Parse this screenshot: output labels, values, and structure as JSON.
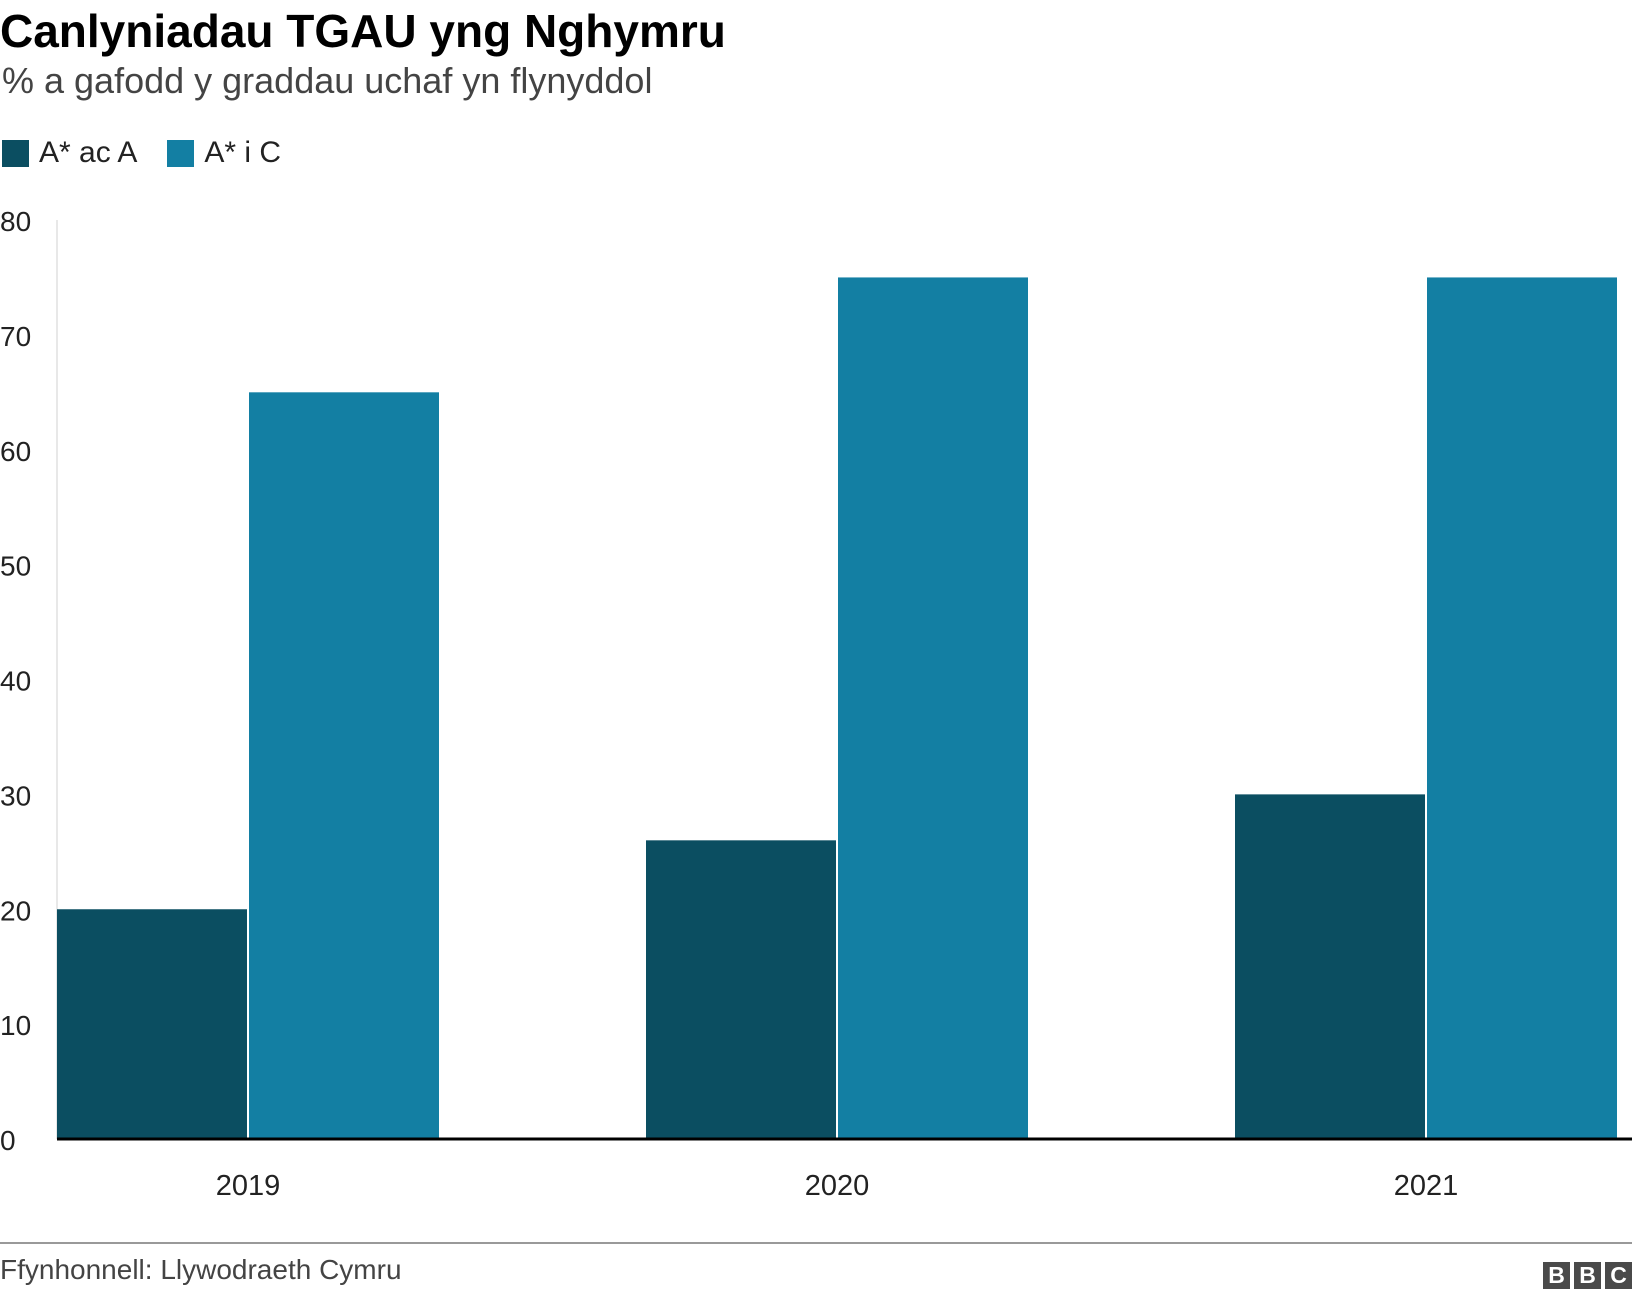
{
  "chart_data": {
    "type": "bar",
    "title": "Canlyniadau TGAU yng Nghymru",
    "subtitle": "% a gafodd y graddau uchaf yn flynyddol",
    "categories": [
      "2019",
      "2020",
      "2021"
    ],
    "series": [
      {
        "name": "A* ac A",
        "values": [
          20,
          26,
          30
        ],
        "color": "#0b4e61"
      },
      {
        "name": "A* i C",
        "values": [
          65,
          75,
          75
        ],
        "color": "#137fa3"
      }
    ],
    "ylim": [
      0,
      80
    ],
    "yticks": [
      "0",
      "10",
      "20",
      "30",
      "40",
      "50",
      "60",
      "70",
      "80"
    ],
    "grid": false,
    "legend": "top-left",
    "source": "Ffynhonnell: Llywodraeth Cymru"
  },
  "logo": {
    "letters": [
      "B",
      "B",
      "C"
    ]
  }
}
